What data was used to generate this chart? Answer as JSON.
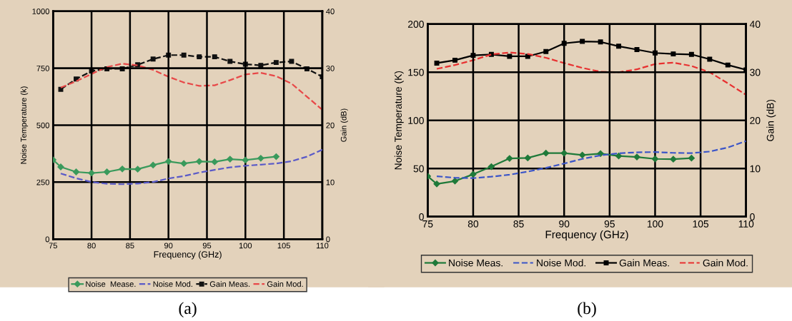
{
  "chart_data": [
    {
      "type": "line",
      "xlabel": "Frequency (GHz)",
      "ylabel": "Noise Temperature (k)",
      "y2label": "Gain (dB)",
      "annotations": [
        "(a)"
      ],
      "xlim": [
        75,
        110
      ],
      "xticks": [
        75,
        80,
        85,
        90,
        95,
        100,
        105,
        110
      ],
      "ylim": [
        0,
        1000
      ],
      "yticks": [
        0,
        250,
        500,
        750,
        1000
      ],
      "y2lim": [
        0,
        40
      ],
      "y2ticks": [
        0,
        10,
        20,
        30,
        40
      ],
      "grid": true,
      "legend": "bottom",
      "series": [
        {
          "name": "Noise  Mease.",
          "color": "#3a9a5c",
          "marker": "diamond",
          "line_style": "solid",
          "x": [
            75,
            76,
            78,
            80,
            82,
            84,
            86,
            88,
            90,
            92,
            94,
            96,
            98,
            100,
            102,
            104
          ],
          "values": [
            348,
            317,
            295,
            290,
            295,
            308,
            307,
            325,
            341,
            332,
            341,
            339,
            351,
            347,
            355,
            362
          ]
        },
        {
          "name": "Noise Mod.",
          "color": "#5a5ac8",
          "marker": "none",
          "line_style": "dashed",
          "x": [
            76,
            78,
            80,
            82,
            84,
            86,
            88,
            90,
            92,
            94,
            96,
            98,
            100,
            102,
            104,
            106,
            108,
            110
          ],
          "values": [
            288,
            267,
            251,
            243,
            241,
            244,
            251,
            266,
            277,
            292,
            304,
            315,
            322,
            327,
            332,
            342,
            362,
            393
          ]
        },
        {
          "name": "Gain Meas.",
          "color": "#111111",
          "marker": "square",
          "line_style": "dashed",
          "axis": "y2",
          "x": [
            76,
            78,
            80,
            82,
            84,
            86,
            88,
            90,
            92,
            94,
            96,
            98,
            100,
            102,
            104,
            106,
            108,
            110
          ],
          "values": [
            26.3,
            28.1,
            29.5,
            29.9,
            29.9,
            30.6,
            31.6,
            32.3,
            32.3,
            32.0,
            32.0,
            31.2,
            30.7,
            30.5,
            31.0,
            31.2,
            29.9,
            28.5
          ]
        },
        {
          "name": "Gain Mod.",
          "color": "#e84848",
          "marker": "none",
          "line_style": "dashed",
          "axis": "y2",
          "x": [
            76,
            78,
            80,
            82,
            84,
            86,
            88,
            90,
            92,
            94,
            96,
            98,
            100,
            102,
            104,
            106,
            108,
            110
          ],
          "values": [
            26.6,
            27.7,
            29.0,
            30.2,
            30.8,
            30.5,
            29.7,
            28.5,
            27.5,
            26.9,
            27.0,
            27.9,
            28.9,
            29.2,
            28.6,
            27.3,
            25.0,
            22.7
          ]
        }
      ]
    },
    {
      "type": "line",
      "xlabel": "Frequency (GHz)",
      "ylabel": "Noise Temperature (K)",
      "y2label": "Gain (dB)",
      "annotations": [
        "(b)"
      ],
      "xlim": [
        75,
        110
      ],
      "xticks": [
        75,
        80,
        85,
        90,
        95,
        100,
        105,
        110
      ],
      "ylim": [
        0,
        200
      ],
      "yticks": [
        0,
        50,
        100,
        150,
        200
      ],
      "y2lim": [
        0,
        40
      ],
      "y2ticks": [
        0,
        10,
        20,
        30,
        40
      ],
      "grid": true,
      "legend": "bottom",
      "series": [
        {
          "name": "Noise Meas.",
          "color": "#1f7a3a",
          "marker": "diamond",
          "line_style": "solid",
          "x": [
            75,
            76,
            78,
            80,
            82,
            84,
            86,
            88,
            90,
            92,
            94,
            96,
            98,
            100,
            102,
            104
          ],
          "values": [
            42,
            34,
            37,
            44,
            52,
            60.5,
            61,
            66,
            66,
            64,
            65.5,
            63,
            62,
            60,
            59.7,
            60.8
          ]
        },
        {
          "name": "Noise Mod.",
          "color": "#3b55c8",
          "marker": "none",
          "line_style": "dashed",
          "x": [
            76,
            78,
            80,
            82,
            84,
            86,
            88,
            90,
            92,
            94,
            96,
            98,
            100,
            102,
            104,
            106,
            108,
            110
          ],
          "values": [
            42,
            40.4,
            40,
            41.5,
            43.6,
            46.8,
            50.7,
            55.2,
            60,
            63.7,
            65.8,
            66.8,
            67.1,
            66.3,
            66,
            67.6,
            71.9,
            78.5
          ]
        },
        {
          "name": "Gain Meas.",
          "color": "#000000",
          "marker": "square",
          "line_style": "solid",
          "axis": "y2",
          "x": [
            76,
            78,
            80,
            82,
            84,
            86,
            88,
            90,
            92,
            94,
            96,
            98,
            100,
            102,
            104,
            106,
            108,
            110
          ],
          "values": [
            31.9,
            32.5,
            33.5,
            33.7,
            33.3,
            33.3,
            34.3,
            36.0,
            36.4,
            36.3,
            35.4,
            34.7,
            34.0,
            33.8,
            33.7,
            32.7,
            31.5,
            30.5
          ]
        },
        {
          "name": "Gain Mod.",
          "color": "#e83030",
          "marker": "none",
          "line_style": "dashed",
          "axis": "y2",
          "x": [
            76,
            78,
            80,
            82,
            84,
            86,
            88,
            90,
            92,
            94,
            96,
            98,
            100,
            102,
            104,
            106,
            108,
            110
          ],
          "values": [
            30.7,
            31.5,
            32.5,
            33.7,
            34.1,
            33.8,
            33.0,
            31.9,
            30.9,
            30.1,
            30.0,
            30.6,
            31.7,
            32.0,
            31.3,
            30.0,
            27.7,
            25.3
          ]
        }
      ]
    }
  ]
}
